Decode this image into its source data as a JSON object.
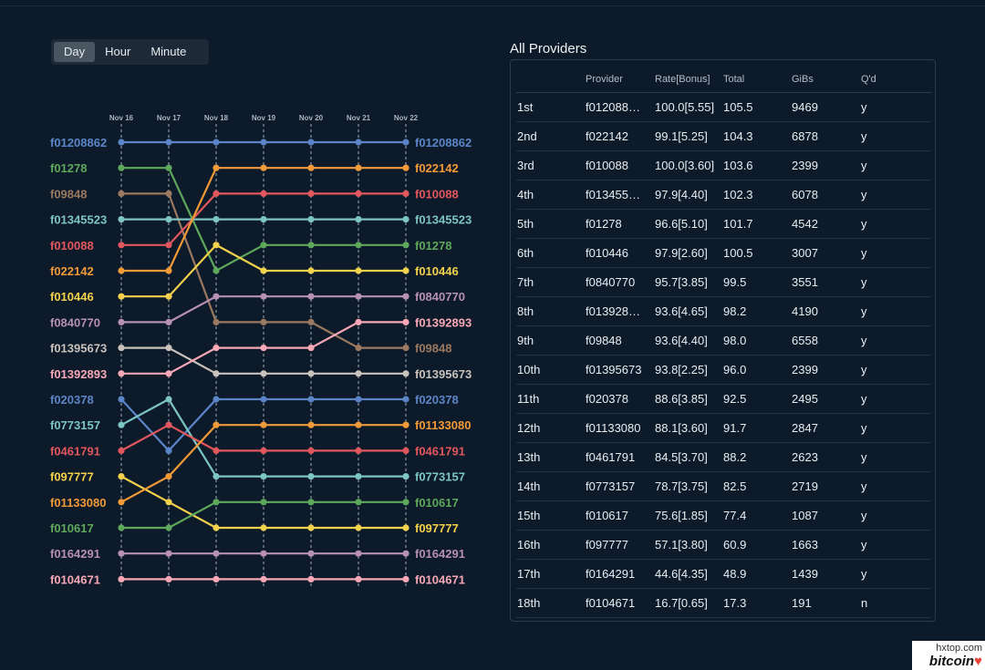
{
  "toolbar": {
    "options": [
      {
        "label": "Day",
        "active": true
      },
      {
        "label": "Hour",
        "active": false
      },
      {
        "label": "Minute",
        "active": false
      }
    ]
  },
  "chart_data": {
    "type": "line",
    "x": [
      "Nov 16",
      "Nov 17",
      "Nov 18",
      "Nov 19",
      "Nov 20",
      "Nov 21",
      "Nov 22"
    ],
    "y_axis": "rank (1 = top)",
    "series": [
      {
        "name": "f01208862",
        "color": "#5b85c8",
        "ranks": [
          1,
          1,
          1,
          1,
          1,
          1,
          1
        ]
      },
      {
        "name": "f01278",
        "color": "#5ea85b",
        "ranks": [
          2,
          2,
          6,
          5,
          5,
          5,
          5
        ]
      },
      {
        "name": "f09848",
        "color": "#9b7961",
        "ranks": [
          3,
          3,
          8,
          8,
          8,
          9,
          9
        ]
      },
      {
        "name": "f01345523",
        "color": "#7cc5c3",
        "ranks": [
          4,
          4,
          4,
          4,
          4,
          4,
          4
        ]
      },
      {
        "name": "f010088",
        "color": "#e2575e",
        "ranks": [
          5,
          5,
          3,
          3,
          3,
          3,
          3
        ]
      },
      {
        "name": "f022142",
        "color": "#f19a38",
        "ranks": [
          6,
          6,
          2,
          2,
          2,
          2,
          2
        ]
      },
      {
        "name": "f010446",
        "color": "#f2d24c",
        "ranks": [
          7,
          7,
          5,
          6,
          6,
          6,
          6
        ]
      },
      {
        "name": "f0840770",
        "color": "#b690b5",
        "ranks": [
          8,
          8,
          7,
          7,
          7,
          7,
          7
        ]
      },
      {
        "name": "f01395673",
        "color": "#c9c2bc",
        "ranks": [
          9,
          9,
          10,
          10,
          10,
          10,
          10
        ]
      },
      {
        "name": "f01392893",
        "color": "#f7a8b6",
        "ranks": [
          10,
          10,
          9,
          9,
          9,
          8,
          8
        ]
      },
      {
        "name": "f020378",
        "color": "#5b85c8",
        "ranks": [
          11,
          13,
          11,
          11,
          11,
          11,
          11
        ]
      },
      {
        "name": "f0773157",
        "color": "#7cc5c3",
        "ranks": [
          12,
          11,
          14,
          14,
          14,
          14,
          14
        ]
      },
      {
        "name": "f0461791",
        "color": "#e2575e",
        "ranks": [
          13,
          12,
          13,
          13,
          13,
          13,
          13
        ]
      },
      {
        "name": "f097777",
        "color": "#f2d24c",
        "ranks": [
          14,
          15,
          16,
          16,
          16,
          16,
          16
        ]
      },
      {
        "name": "f01133080",
        "color": "#f19a38",
        "ranks": [
          15,
          14,
          12,
          12,
          12,
          12,
          12
        ]
      },
      {
        "name": "f010617",
        "color": "#5ea85b",
        "ranks": [
          16,
          16,
          15,
          15,
          15,
          15,
          15
        ]
      },
      {
        "name": "f0164291",
        "color": "#b690b5",
        "ranks": [
          17,
          17,
          17,
          17,
          17,
          17,
          17
        ]
      },
      {
        "name": "f0104671",
        "color": "#f7a8b6",
        "ranks": [
          18,
          18,
          18,
          18,
          18,
          18,
          18
        ]
      }
    ]
  },
  "table": {
    "title": "All Providers",
    "headers": [
      "",
      "Provider",
      "Rate[Bonus]",
      "Total",
      "GiBs",
      "Q'd"
    ],
    "rows": [
      [
        "1st",
        "f012088…",
        "100.0[5.55]",
        "105.5",
        "9469",
        "y"
      ],
      [
        "2nd",
        "f022142",
        "99.1[5.25]",
        "104.3",
        "6878",
        "y"
      ],
      [
        "3rd",
        "f010088",
        "100.0[3.60]",
        "103.6",
        "2399",
        "y"
      ],
      [
        "4th",
        "f013455…",
        "97.9[4.40]",
        "102.3",
        "6078",
        "y"
      ],
      [
        "5th",
        "f01278",
        "96.6[5.10]",
        "101.7",
        "4542",
        "y"
      ],
      [
        "6th",
        "f010446",
        "97.9[2.60]",
        "100.5",
        "3007",
        "y"
      ],
      [
        "7th",
        "f0840770",
        "95.7[3.85]",
        "99.5",
        "3551",
        "y"
      ],
      [
        "8th",
        "f013928…",
        "93.6[4.65]",
        "98.2",
        "4190",
        "y"
      ],
      [
        "9th",
        "f09848",
        "93.6[4.40]",
        "98.0",
        "6558",
        "y"
      ],
      [
        "10th",
        "f01395673",
        "93.8[2.25]",
        "96.0",
        "2399",
        "y"
      ],
      [
        "11th",
        "f020378",
        "88.6[3.85]",
        "92.5",
        "2495",
        "y"
      ],
      [
        "12th",
        "f01133080",
        "88.1[3.60]",
        "91.7",
        "2847",
        "y"
      ],
      [
        "13th",
        "f0461791",
        "84.5[3.70]",
        "88.2",
        "2623",
        "y"
      ],
      [
        "14th",
        "f0773157",
        "78.7[3.75]",
        "82.5",
        "2719",
        "y"
      ],
      [
        "15th",
        "f010617",
        "75.6[1.85]",
        "77.4",
        "1087",
        "y"
      ],
      [
        "16th",
        "f097777",
        "57.1[3.80]",
        "60.9",
        "1663",
        "y"
      ],
      [
        "17th",
        "f0164291",
        "44.6[4.35]",
        "48.9",
        "1439",
        "y"
      ],
      [
        "18th",
        "f0104671",
        "16.7[0.65]",
        "17.3",
        "191",
        "n"
      ]
    ]
  },
  "watermark": {
    "line1": "hxtop.com",
    "line2": "bitcoin"
  }
}
